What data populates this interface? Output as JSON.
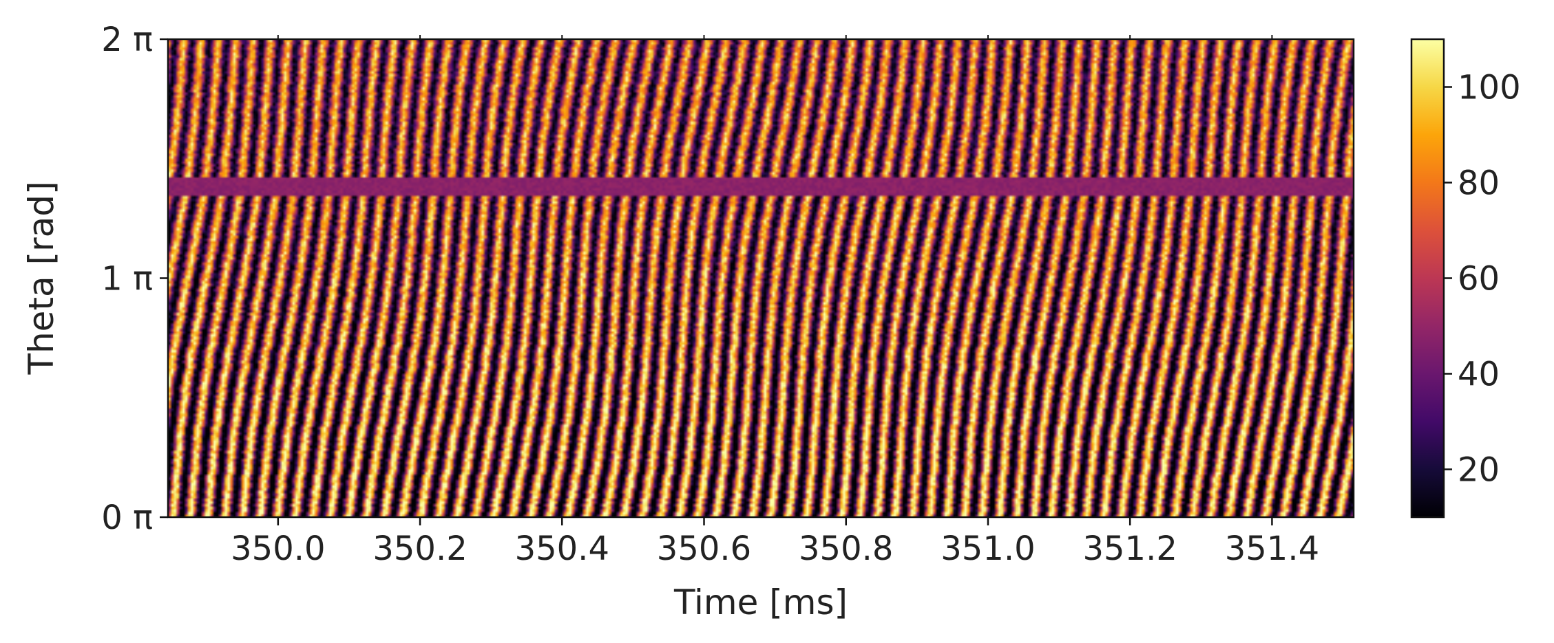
{
  "chart_data": {
    "type": "heatmap",
    "title": "",
    "xlabel": "Time [ms]",
    "ylabel": "Theta [rad]",
    "xlim": [
      349.845,
      351.515
    ],
    "ylim": [
      0,
      2
    ],
    "x_unit": "ms",
    "y_unit": "π rad",
    "x_ticks": [
      {
        "value": 350.0,
        "label": "350.0"
      },
      {
        "value": 350.2,
        "label": "350.2"
      },
      {
        "value": 350.4,
        "label": "350.4"
      },
      {
        "value": 350.6,
        "label": "350.6"
      },
      {
        "value": 350.8,
        "label": "350.8"
      },
      {
        "value": 351.0,
        "label": "351.0"
      },
      {
        "value": 351.2,
        "label": "351.2"
      },
      {
        "value": 351.4,
        "label": "351.4"
      }
    ],
    "y_ticks": [
      {
        "value": 0,
        "label": "0 π"
      },
      {
        "value": 1,
        "label": "1 π"
      },
      {
        "value": 2,
        "label": "2 π"
      }
    ],
    "colormap": "inferno",
    "colorbar": {
      "min": 10,
      "max": 110,
      "ticks": [
        {
          "value": 20,
          "label": "20"
        },
        {
          "value": 40,
          "label": "40"
        },
        {
          "value": 60,
          "label": "60"
        },
        {
          "value": 80,
          "label": "80"
        },
        {
          "value": 100,
          "label": "100"
        }
      ]
    },
    "pattern": {
      "stripe_count": 66,
      "stripe_tilt_ms_per_2pi": 0.09,
      "uniform_band_theta_pi": [
        1.35,
        1.42
      ],
      "uniform_band_value": 48,
      "description_values": {
        "low": 12,
        "mid": 55,
        "high": 105
      }
    }
  }
}
